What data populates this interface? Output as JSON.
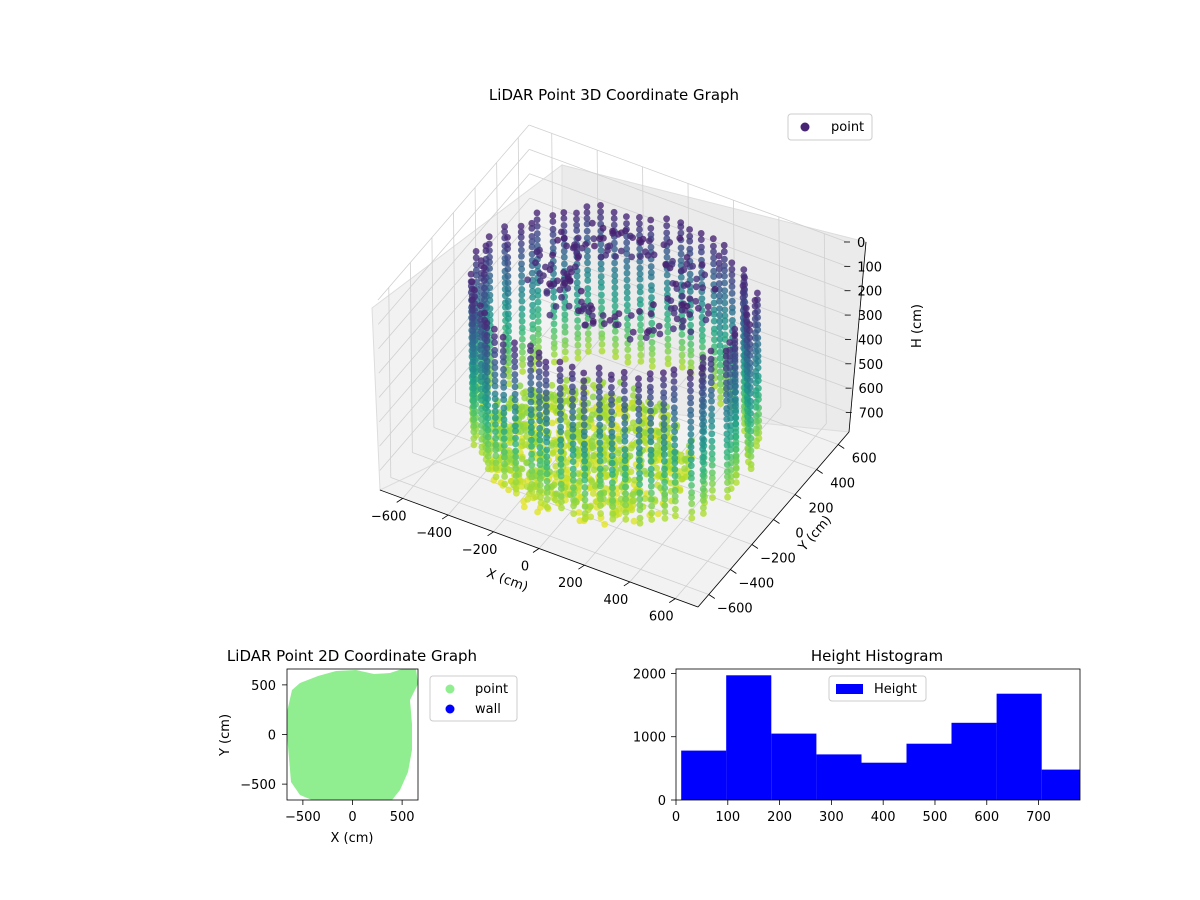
{
  "chart_data": [
    {
      "type": "scatter3d",
      "title": "LiDAR Point 3D Coordinate Graph",
      "xlabel": "X (cm)",
      "ylabel": "Y (cm)",
      "zlabel": "H (cm)",
      "x_ticks": [
        "−600",
        "−400",
        "−200",
        "0",
        "200",
        "400",
        "600"
      ],
      "y_ticks": [
        "−600",
        "−400",
        "−200",
        "0",
        "200",
        "400",
        "600"
      ],
      "z_ticks": [
        "0",
        "100",
        "200",
        "300",
        "400",
        "500",
        "600",
        "700"
      ],
      "xlim": [
        -700,
        700
      ],
      "ylim": [
        -700,
        700
      ],
      "zlim": [
        0,
        780
      ],
      "z_inverted": true,
      "colormap": "viridis",
      "legend": {
        "placement": "top-right",
        "entries": [
          "point"
        ],
        "marker_color": "#482475"
      },
      "rings": {
        "radius_cm": 560,
        "wall_height_cm": [
          80,
          700
        ],
        "note_omitted": ""
      }
    },
    {
      "type": "scatter",
      "title": "LiDAR Point 2D Coordinate Graph",
      "xlabel": "X (cm)",
      "ylabel": "Y (cm)",
      "x_ticks": [
        "−500",
        "0",
        "500"
      ],
      "y_ticks": [
        "500",
        "0",
        "−500"
      ],
      "xlim": [
        -660,
        660
      ],
      "ylim": [
        -660,
        660
      ],
      "grid": false,
      "legend": {
        "placement": "outside-right",
        "entries": [
          {
            "name": "point",
            "color": "#90ee90"
          },
          {
            "name": "wall",
            "color": "#0000ff"
          }
        ]
      },
      "fill_color": "#90ee90"
    },
    {
      "type": "bar",
      "title": "Height Histogram",
      "legend": {
        "placement": "top-center",
        "entries": [
          {
            "name": "Height",
            "color": "#0000ff"
          }
        ]
      },
      "x_ticks": [
        "0",
        "100",
        "200",
        "300",
        "400",
        "500",
        "600",
        "700"
      ],
      "y_ticks": [
        "0",
        "1000",
        "2000"
      ],
      "xlim": [
        0,
        780
      ],
      "ylim": [
        0,
        2070
      ],
      "bin_edges": [
        10,
        97,
        184,
        271,
        358,
        445,
        532,
        619,
        706,
        793
      ],
      "values": [
        780,
        1970,
        1050,
        720,
        590,
        890,
        1220,
        1680,
        480
      ],
      "bar_color": "#0000ff"
    }
  ]
}
